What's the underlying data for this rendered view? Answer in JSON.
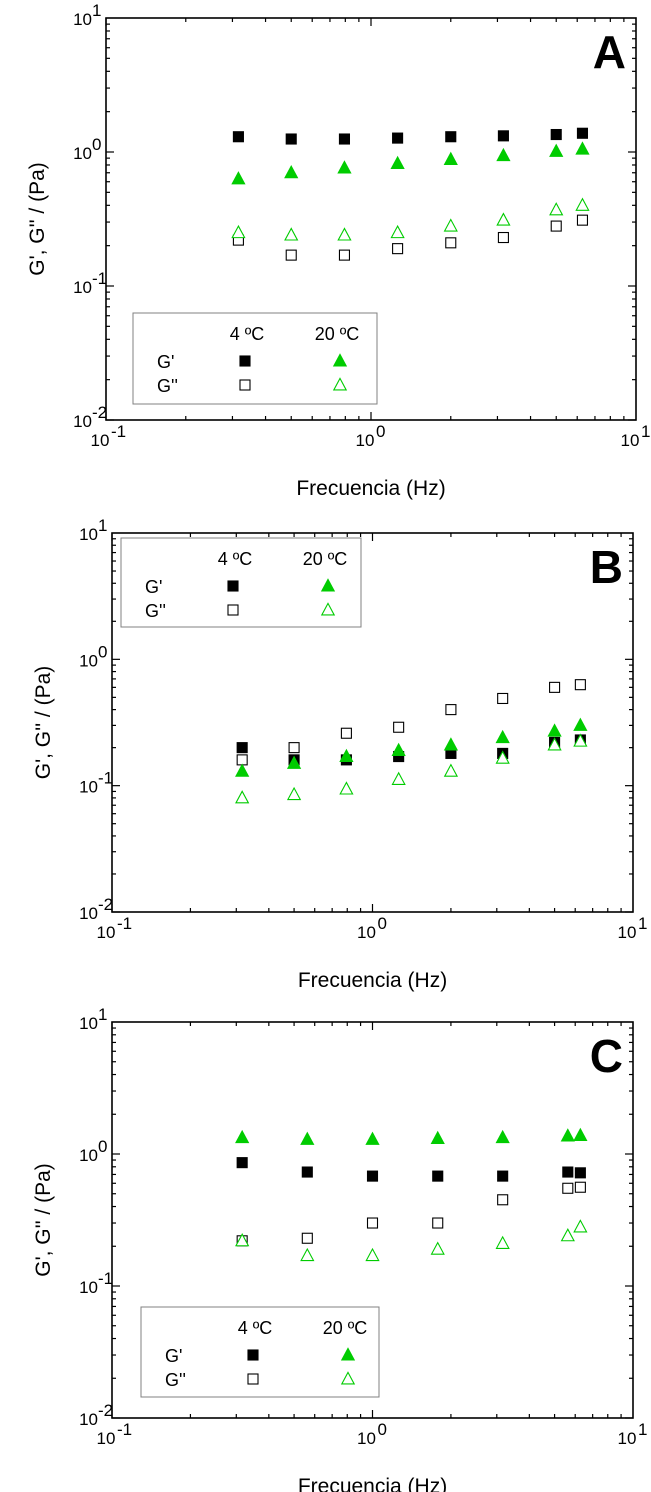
{
  "colors": {
    "black": "#000000",
    "green": "#00cc00",
    "legend_border": "#808080"
  },
  "chart_data": [
    {
      "type": "scatter",
      "panel_label": "A",
      "xlabel": "Frecuencia (Hz)",
      "ylabel": "G', G'' / (Pa)",
      "xscale": "log",
      "yscale": "log",
      "xlim": [
        0.1,
        10
      ],
      "ylim": [
        0.01,
        10
      ],
      "x_ticks": [
        {
          "base": "10",
          "exp": "-1"
        },
        {
          "base": "10",
          "exp": "0"
        },
        {
          "base": "10",
          "exp": "1"
        }
      ],
      "y_ticks": [
        {
          "base": "10",
          "exp": "-2"
        },
        {
          "base": "10",
          "exp": "-1"
        },
        {
          "base": "10",
          "exp": "0"
        },
        {
          "base": "10",
          "exp": "1"
        }
      ],
      "legend": {
        "placement": "bottom-left",
        "col_4": "4 ºC",
        "col_20": "20 ºC",
        "row_g1": "G'",
        "row_g2": "G''"
      },
      "x": [
        0.316,
        0.5,
        0.794,
        1.26,
        2.0,
        3.16,
        5.0,
        6.28
      ],
      "series": [
        {
          "name": "G' 4 ºC",
          "marker": "square-filled",
          "color": "#000000",
          "values": [
            1.3,
            1.25,
            1.25,
            1.27,
            1.3,
            1.32,
            1.35,
            1.38
          ]
        },
        {
          "name": "G'' 4 ºC",
          "marker": "square-open",
          "color": "#000000",
          "values": [
            0.22,
            0.17,
            0.17,
            0.19,
            0.21,
            0.23,
            0.28,
            0.31
          ]
        },
        {
          "name": "G' 20 ºC",
          "marker": "triangle-filled",
          "color": "#00cc00",
          "values": [
            0.63,
            0.7,
            0.76,
            0.82,
            0.88,
            0.94,
            1.01,
            1.05
          ]
        },
        {
          "name": "G'' 20 ºC",
          "marker": "triangle-open",
          "color": "#00cc00",
          "values": [
            0.25,
            0.24,
            0.24,
            0.25,
            0.28,
            0.31,
            0.37,
            0.4
          ]
        }
      ]
    },
    {
      "type": "scatter",
      "panel_label": "B",
      "xlabel": "Frecuencia (Hz)",
      "ylabel": "G', G'' / (Pa)",
      "xscale": "log",
      "yscale": "log",
      "xlim": [
        0.1,
        10
      ],
      "ylim": [
        0.01,
        10
      ],
      "x_ticks": [
        {
          "base": "10",
          "exp": "-1"
        },
        {
          "base": "10",
          "exp": "0"
        },
        {
          "base": "10",
          "exp": "1"
        }
      ],
      "y_ticks": [
        {
          "base": "10",
          "exp": "-2"
        },
        {
          "base": "10",
          "exp": "-1"
        },
        {
          "base": "10",
          "exp": "0"
        },
        {
          "base": "10",
          "exp": "1"
        }
      ],
      "legend": {
        "placement": "top-left",
        "col_4": "4 ºC",
        "col_20": "20 ºC",
        "row_g1": "G'",
        "row_g2": "G''"
      },
      "x": [
        0.316,
        0.5,
        0.794,
        1.26,
        2.0,
        3.16,
        5.0,
        6.28
      ],
      "series": [
        {
          "name": "G' 4 ºC",
          "marker": "square-filled",
          "color": "#000000",
          "values": [
            0.2,
            0.16,
            0.16,
            0.17,
            0.18,
            0.18,
            0.22,
            0.23
          ]
        },
        {
          "name": "G'' 4 ºC",
          "marker": "square-open",
          "color": "#000000",
          "values": [
            0.16,
            0.2,
            0.26,
            0.29,
            0.4,
            0.49,
            0.6,
            0.63
          ]
        },
        {
          "name": "G' 20 ºC",
          "marker": "triangle-filled",
          "color": "#00cc00",
          "values": [
            0.13,
            0.15,
            0.17,
            0.19,
            0.21,
            0.24,
            0.27,
            0.3
          ]
        },
        {
          "name": "G'' 20 ºC",
          "marker": "triangle-open",
          "color": "#00cc00",
          "values": [
            0.08,
            0.085,
            0.094,
            0.112,
            0.13,
            0.165,
            0.21,
            0.225
          ]
        }
      ]
    },
    {
      "type": "scatter",
      "panel_label": "C",
      "xlabel": "Frecuencia (Hz)",
      "ylabel": "G', G'' / (Pa)",
      "xscale": "log",
      "yscale": "log",
      "xlim": [
        0.1,
        10
      ],
      "ylim": [
        0.01,
        10
      ],
      "x_ticks": [
        {
          "base": "10",
          "exp": "-1"
        },
        {
          "base": "10",
          "exp": "0"
        },
        {
          "base": "10",
          "exp": "1"
        }
      ],
      "y_ticks": [
        {
          "base": "10",
          "exp": "-2"
        },
        {
          "base": "10",
          "exp": "-1"
        },
        {
          "base": "10",
          "exp": "0"
        },
        {
          "base": "10",
          "exp": "1"
        }
      ],
      "legend": {
        "placement": "bottom-left",
        "col_4": "4 ºC",
        "col_20": "20 ºC",
        "row_g1": "G'",
        "row_g2": "G''"
      },
      "x": [
        0.316,
        0.562,
        1.0,
        1.78,
        3.16,
        5.62,
        6.28
      ],
      "series": [
        {
          "name": "G' 4 ºC",
          "marker": "square-filled",
          "color": "#000000",
          "values": [
            0.86,
            0.73,
            0.68,
            0.68,
            0.68,
            0.73,
            0.72
          ]
        },
        {
          "name": "G'' 4 ºC",
          "marker": "square-open",
          "color": "#000000",
          "values": [
            0.22,
            0.23,
            0.3,
            0.3,
            0.45,
            0.55,
            0.56
          ]
        },
        {
          "name": "G' 20 ºC",
          "marker": "triangle-filled",
          "color": "#00cc00",
          "values": [
            1.33,
            1.29,
            1.29,
            1.31,
            1.33,
            1.37,
            1.38
          ]
        },
        {
          "name": "G'' 20 ºC",
          "marker": "triangle-open",
          "color": "#00cc00",
          "values": [
            0.22,
            0.17,
            0.17,
            0.19,
            0.21,
            0.24,
            0.28
          ]
        }
      ]
    }
  ]
}
